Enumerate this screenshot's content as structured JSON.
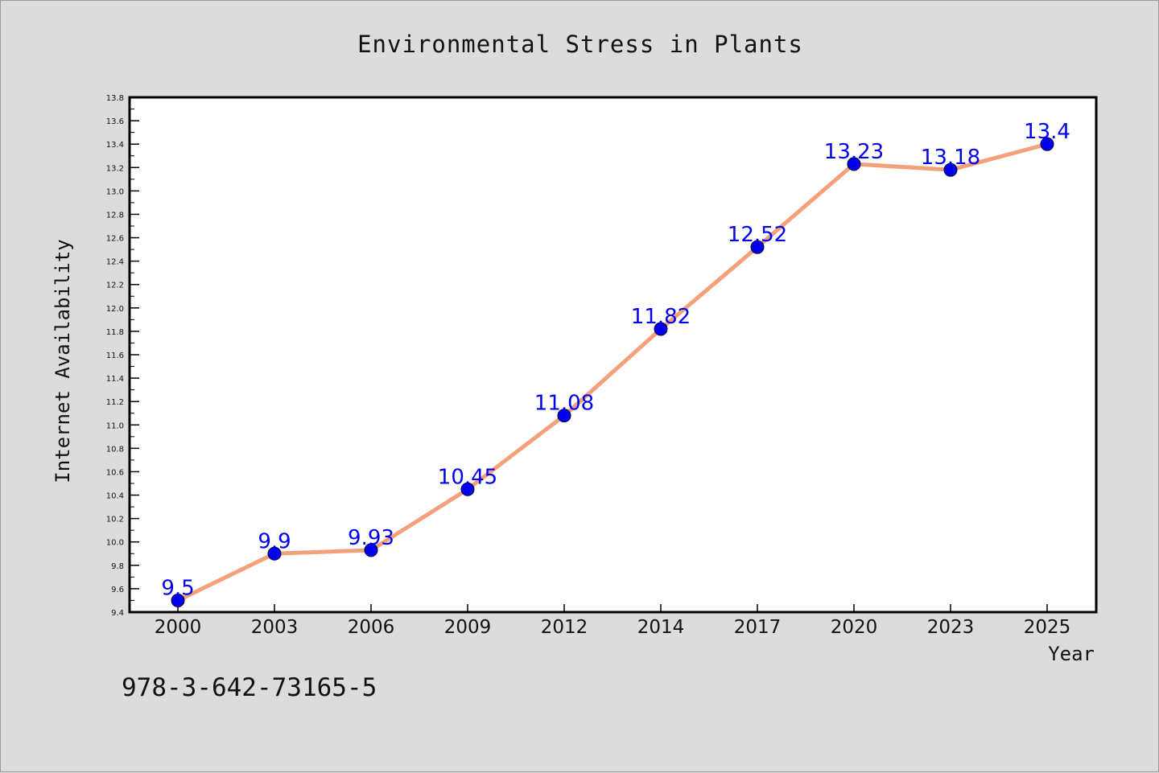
{
  "chart_data": {
    "type": "line",
    "title": "Environmental Stress in Plants",
    "xlabel": "Year",
    "ylabel": "Internet Availability",
    "categories": [
      "2000",
      "2003",
      "2006",
      "2009",
      "2012",
      "2014",
      "2017",
      "2020",
      "2023",
      "2025"
    ],
    "series": [
      {
        "values": [
          9.5,
          9.9,
          9.93,
          10.45,
          11.08,
          11.82,
          12.52,
          13.23,
          13.18,
          13.4
        ],
        "labels": [
          "9.5",
          "9.9",
          "9.93",
          "10.45",
          "11.08",
          "11.82",
          "12.52",
          "13.23",
          "13.18",
          "13.4"
        ]
      }
    ],
    "ylim": [
      9.4,
      13.8
    ],
    "yticks": [
      "9.4",
      "9.6",
      "9.8",
      "10.0",
      "10.2",
      "10.4",
      "10.6",
      "10.8",
      "11.0",
      "11.2",
      "11.4",
      "11.6",
      "11.8",
      "12.0",
      "12.2",
      "12.4",
      "12.6",
      "12.8",
      "13.0",
      "13.2",
      "13.4",
      "13.6",
      "13.8"
    ],
    "grid": false,
    "colors": {
      "line": "#f4a07a",
      "marker": "#0000ee",
      "label": "#0000ee"
    }
  },
  "footer": {
    "code": "978-3-642-73165-5"
  }
}
